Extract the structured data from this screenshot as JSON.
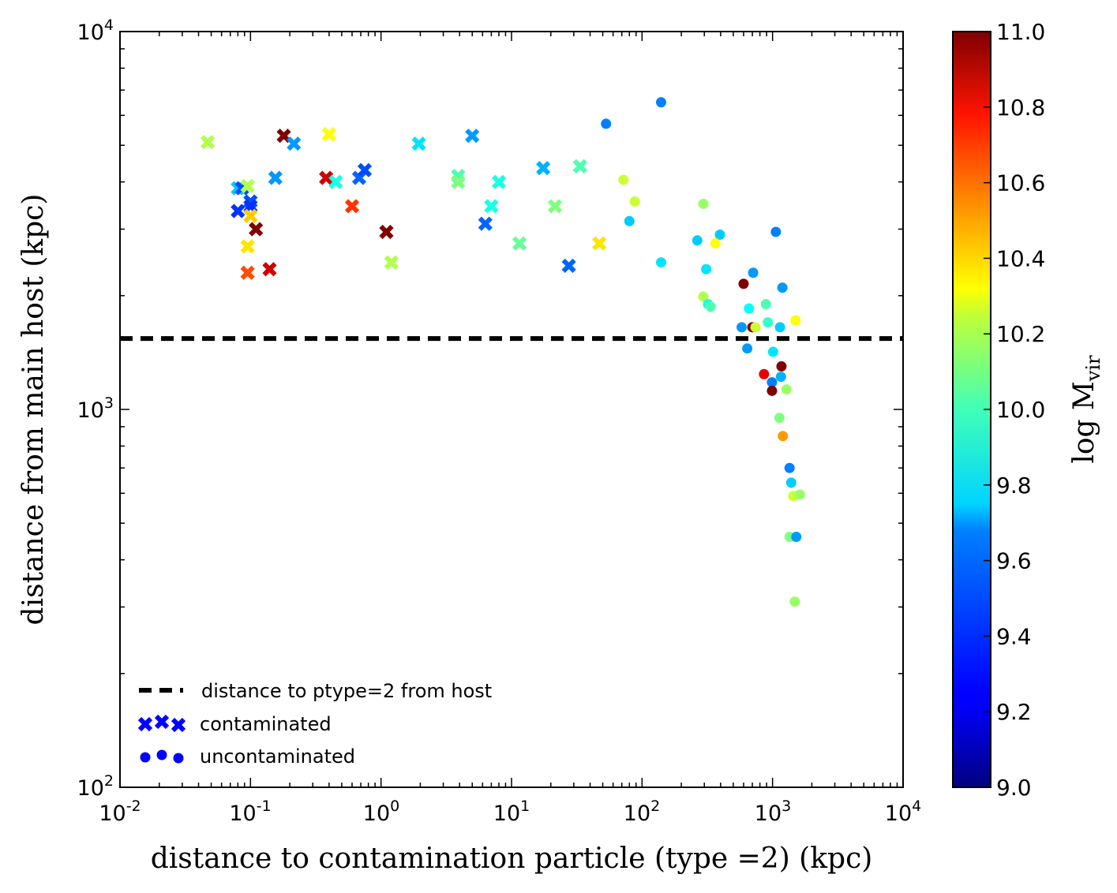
{
  "chart_data": {
    "type": "scatter",
    "xscale": "log",
    "yscale": "log",
    "xlabel": "distance to contamination particle (type =2) (kpc)",
    "ylabel": "distance from main host (kpc)",
    "xlim": [
      0.01,
      10000
    ],
    "ylim": [
      100,
      10000
    ],
    "x_tick_labels": [
      {
        "base": "10",
        "exp": "-2"
      },
      {
        "base": "10",
        "exp": "-1"
      },
      {
        "base": "10",
        "exp": "0"
      },
      {
        "base": "10",
        "exp": "1"
      },
      {
        "base": "10",
        "exp": "2"
      },
      {
        "base": "10",
        "exp": "3"
      },
      {
        "base": "10",
        "exp": "4"
      }
    ],
    "y_tick_labels": [
      {
        "base": "10",
        "exp": "2"
      },
      {
        "base": "10",
        "exp": "3"
      },
      {
        "base": "10",
        "exp": "4"
      }
    ],
    "hline": {
      "y": 1540,
      "style": "dashed",
      "color": "#000000",
      "label": "distance to ptype=2 from host"
    },
    "colorbar": {
      "label_main": "log M",
      "label_sub": "vir",
      "range": [
        9.0,
        11.0
      ],
      "ticks": [
        "9.0",
        "9.2",
        "9.4",
        "9.6",
        "9.8",
        "10.0",
        "10.2",
        "10.4",
        "10.6",
        "10.8",
        "11.0"
      ],
      "colormap": "jet"
    },
    "legend": {
      "location": "lower-left",
      "entries": [
        {
          "label": "distance to ptype=2 from host",
          "marker": "dashed-line"
        },
        {
          "label": "contaminated",
          "marker": "x"
        },
        {
          "label": "uncontaminated",
          "marker": "o"
        }
      ],
      "marker_color": "#0000ff"
    },
    "series": [
      {
        "name": "contaminated",
        "marker": "x",
        "points": [
          [
            0.047,
            5100,
            10.1
          ],
          [
            0.08,
            3850,
            9.65
          ],
          [
            0.08,
            3350,
            9.35
          ],
          [
            0.086,
            3850,
            9.4
          ],
          [
            0.095,
            3900,
            10.1
          ],
          [
            0.1,
            3550,
            9.4
          ],
          [
            0.1,
            3450,
            9.35
          ],
          [
            0.1,
            3250,
            10.35
          ],
          [
            0.095,
            2700,
            10.3
          ],
          [
            0.095,
            2300,
            10.6
          ],
          [
            0.11,
            3000,
            11.0
          ],
          [
            0.14,
            2350,
            10.85
          ],
          [
            0.155,
            4100,
            9.55
          ],
          [
            0.18,
            5300,
            11.0
          ],
          [
            0.215,
            5050,
            9.55
          ],
          [
            0.38,
            4100,
            10.85
          ],
          [
            0.4,
            5350,
            10.25
          ],
          [
            0.45,
            4000,
            9.8
          ],
          [
            0.68,
            4100,
            9.45
          ],
          [
            0.75,
            4300,
            9.4
          ],
          [
            0.6,
            3450,
            10.65
          ],
          [
            1.1,
            2950,
            11.0
          ],
          [
            1.2,
            2450,
            10.1
          ],
          [
            1.95,
            5050,
            9.7
          ],
          [
            3.9,
            4150,
            9.9
          ],
          [
            3.9,
            4000,
            10.0
          ],
          [
            5.0,
            5300,
            9.55
          ],
          [
            6.3,
            3100,
            9.45
          ],
          [
            7.0,
            3450,
            9.8
          ],
          [
            8.0,
            4000,
            9.8
          ],
          [
            11.5,
            2750,
            9.95
          ],
          [
            17.5,
            4350,
            9.6
          ],
          [
            21.5,
            3450,
            10.0
          ],
          [
            27.5,
            2400,
            9.45
          ],
          [
            33.5,
            4400,
            9.9
          ],
          [
            47.0,
            2750,
            10.3
          ]
        ]
      },
      {
        "name": "uncontaminated",
        "marker": "o",
        "points": [
          [
            53.0,
            5700,
            9.5
          ],
          [
            140.0,
            6500,
            9.5
          ],
          [
            72.0,
            4050,
            10.15
          ],
          [
            88.0,
            3550,
            10.15
          ],
          [
            80.0,
            3150,
            9.65
          ],
          [
            140.0,
            2450,
            9.7
          ],
          [
            265.0,
            2800,
            9.65
          ],
          [
            295.0,
            3500,
            10.05
          ],
          [
            395.0,
            2900,
            9.65
          ],
          [
            365.0,
            2750,
            10.25
          ],
          [
            310.0,
            2350,
            9.7
          ],
          [
            295.0,
            1990,
            10.1
          ],
          [
            320.0,
            1900,
            9.8
          ],
          [
            335.0,
            1870,
            9.9
          ],
          [
            600.0,
            2150,
            11.0
          ],
          [
            710.0,
            2300,
            9.55
          ],
          [
            1190.0,
            2100,
            9.55
          ],
          [
            1060.0,
            2950,
            9.5
          ],
          [
            660.0,
            1850,
            9.75
          ],
          [
            890.0,
            1900,
            9.9
          ],
          [
            580.0,
            1650,
            9.55
          ],
          [
            700.0,
            1650,
            11.0
          ],
          [
            740.0,
            1650,
            10.15
          ],
          [
            920.0,
            1700,
            9.85
          ],
          [
            1140.0,
            1650,
            9.65
          ],
          [
            1500.0,
            1720,
            10.25
          ],
          [
            640.0,
            1450,
            9.55
          ],
          [
            1010.0,
            1420,
            9.7
          ],
          [
            1170.0,
            1300,
            11.0
          ],
          [
            860.0,
            1240,
            10.8
          ],
          [
            1160.0,
            1220,
            9.6
          ],
          [
            990.0,
            1180,
            9.5
          ],
          [
            990.0,
            1120,
            11.0
          ],
          [
            1280.0,
            1130,
            10.05
          ],
          [
            1130.0,
            950,
            10.0
          ],
          [
            1200.0,
            850,
            10.45
          ],
          [
            1350.0,
            700,
            9.5
          ],
          [
            1390.0,
            640,
            9.65
          ],
          [
            1440.0,
            590,
            10.15
          ],
          [
            1620.0,
            595,
            10.05
          ],
          [
            1350.0,
            460,
            10.0
          ],
          [
            1520.0,
            460,
            9.55
          ],
          [
            1480.0,
            310,
            10.05
          ]
        ]
      }
    ]
  }
}
